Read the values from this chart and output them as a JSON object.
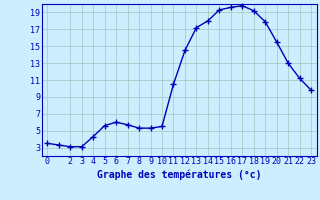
{
  "hours": [
    0,
    1,
    2,
    3,
    4,
    5,
    6,
    7,
    8,
    9,
    10,
    11,
    12,
    13,
    14,
    15,
    16,
    17,
    18,
    19,
    20,
    21,
    22,
    23
  ],
  "temps": [
    3.5,
    3.3,
    3.1,
    3.1,
    4.3,
    5.6,
    6.0,
    5.7,
    5.3,
    5.3,
    5.5,
    10.5,
    14.5,
    17.2,
    18.0,
    19.3,
    19.6,
    19.8,
    19.2,
    17.9,
    15.5,
    13.0,
    11.2,
    9.8
  ],
  "line_color": "#0000bb",
  "marker_color": "#0000bb",
  "bg_color": "#cceeff",
  "grid_color": "#aacccc",
  "xlabel": "Graphe des températures (°c)",
  "xlabel_color": "#0000bb",
  "tick_color": "#0000bb",
  "spine_color": "#0000bb",
  "ylim": [
    2,
    20
  ],
  "xlim": [
    -0.5,
    23.5
  ],
  "yticks": [
    3,
    5,
    7,
    9,
    11,
    13,
    15,
    17,
    19
  ],
  "xticks": [
    0,
    2,
    3,
    4,
    5,
    6,
    7,
    8,
    9,
    10,
    11,
    12,
    13,
    14,
    15,
    16,
    17,
    18,
    19,
    20,
    21,
    22,
    23
  ],
  "xtick_labels": [
    "0",
    "2",
    "3",
    "4",
    "5",
    "6",
    "7",
    "8",
    "9",
    "10",
    "11",
    "12",
    "13",
    "14",
    "15",
    "16",
    "17",
    "18",
    "19",
    "20",
    "21",
    "22",
    "23"
  ],
  "marker_size": 4,
  "line_width": 1.0,
  "tick_fontsize": 6,
  "xlabel_fontsize": 7
}
